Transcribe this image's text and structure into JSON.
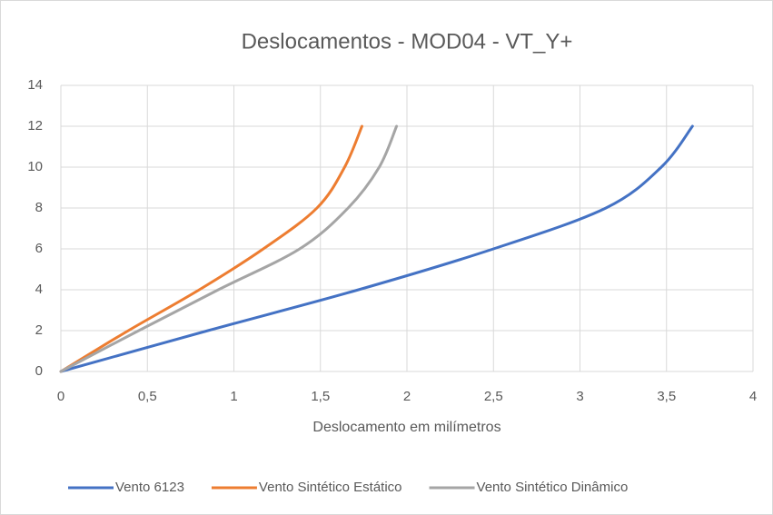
{
  "chart_data": {
    "type": "line",
    "title": "Deslocamentos - MOD04 - VT_Y+",
    "x_label": "Deslocamento em milímetros",
    "xlim": [
      0,
      4
    ],
    "xticks": [
      0,
      {
        "value": 0.5,
        "label": "0,5"
      },
      1,
      {
        "value": 1.5,
        "label": "1,5"
      },
      2,
      {
        "value": 2.5,
        "label": "2,5"
      },
      3,
      {
        "value": 3.5,
        "label": "3,5"
      },
      4
    ],
    "ylim": [
      0,
      14
    ],
    "yticks": [
      0,
      2,
      4,
      6,
      8,
      10,
      12,
      14
    ],
    "grid": true,
    "legend": "bottom",
    "series": [
      {
        "name": "Vento 6123",
        "color": "#4472c4",
        "x": [
          0,
          0.85,
          1.72,
          2.5,
          3.15,
          3.47,
          3.65
        ],
        "values": [
          0,
          2,
          4,
          6,
          8,
          10,
          12
        ]
      },
      {
        "name": "Vento Sintético Estático",
        "color": "#ed7d31",
        "x": [
          0,
          0.39,
          0.8,
          1.17,
          1.48,
          1.64,
          1.74
        ],
        "values": [
          0,
          2,
          4,
          6,
          8,
          10,
          12
        ]
      },
      {
        "name": "Vento Sintético Dinâmico",
        "color": "#a5a5a5",
        "x": [
          0,
          0.45,
          0.91,
          1.38,
          1.66,
          1.84,
          1.94
        ],
        "values": [
          0,
          2,
          4,
          6,
          8,
          10,
          12
        ]
      }
    ]
  }
}
